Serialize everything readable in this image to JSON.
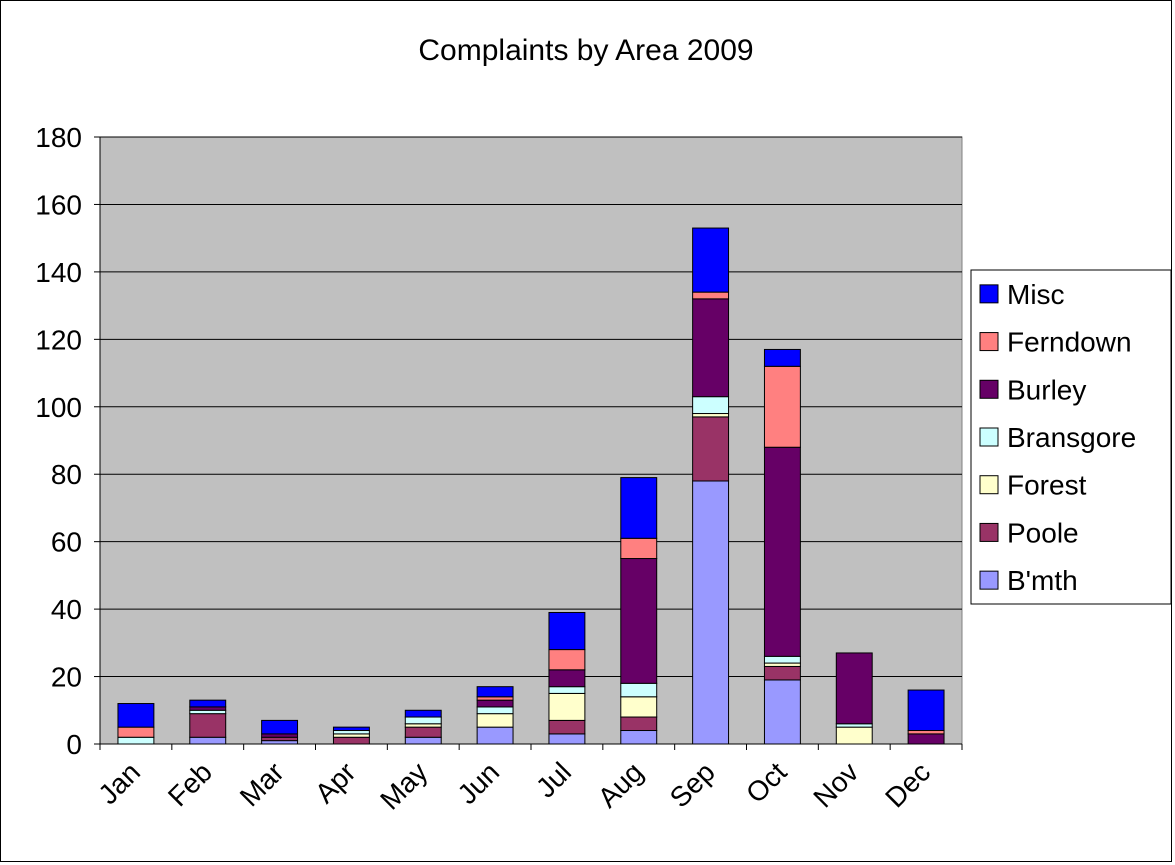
{
  "chart_data": {
    "type": "bar",
    "stacked": true,
    "title": "Complaints by Area 2009",
    "xlabel": "",
    "ylabel": "",
    "ylim": [
      0,
      180
    ],
    "yticks": [
      0,
      20,
      40,
      60,
      80,
      100,
      120,
      140,
      160,
      180
    ],
    "grid": true,
    "legend_position": "right",
    "categories": [
      "Jan",
      "Feb",
      "Mar",
      "Apr",
      "May",
      "Jun",
      "Jul",
      "Aug",
      "Sep",
      "Oct",
      "Nov",
      "Dec"
    ],
    "series": [
      {
        "name": "B'mth",
        "color": "#9999ff",
        "values": [
          0,
          2,
          1,
          0,
          2,
          5,
          3,
          4,
          78,
          19,
          0,
          0
        ]
      },
      {
        "name": "Poole",
        "color": "#993366",
        "values": [
          0,
          7,
          1,
          2,
          3,
          0,
          4,
          4,
          19,
          4,
          0,
          0
        ]
      },
      {
        "name": "Forest",
        "color": "#ffffcc",
        "values": [
          0,
          0,
          0,
          1,
          1,
          4,
          8,
          6,
          1,
          1,
          5,
          0
        ]
      },
      {
        "name": "Bransgore",
        "color": "#ccffff",
        "values": [
          2,
          1,
          0,
          1,
          2,
          2,
          2,
          4,
          5,
          2,
          1,
          0
        ]
      },
      {
        "name": "Burley",
        "color": "#660066",
        "values": [
          0,
          1,
          1,
          0,
          0,
          2,
          5,
          37,
          29,
          62,
          21,
          3
        ]
      },
      {
        "name": "Ferndown",
        "color": "#ff8080",
        "values": [
          3,
          0,
          0,
          0,
          0,
          1,
          6,
          6,
          2,
          24,
          0,
          1
        ]
      },
      {
        "name": "Misc",
        "color": "#0000ff",
        "values": [
          7,
          2,
          4,
          1,
          2,
          3,
          11,
          18,
          19,
          5,
          0,
          12
        ]
      }
    ],
    "plot_background": "#c0c0c0"
  }
}
